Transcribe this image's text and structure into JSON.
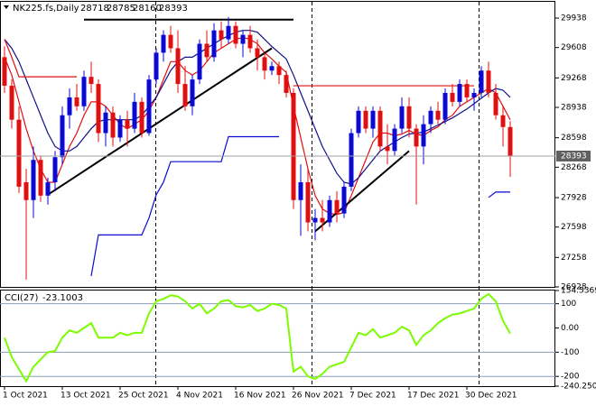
{
  "chart_data": [
    {
      "type": "candlestick",
      "title": "NK225.fs,Daily",
      "categories": [
        "1 Oct 2021",
        null,
        null,
        null,
        null,
        null,
        null,
        null,
        "13 Oct 2021",
        null,
        null,
        null,
        null,
        null,
        null,
        null,
        "25 Oct 2021",
        null,
        null,
        null,
        null,
        null,
        null,
        null,
        "4 Nov 2021",
        null,
        null,
        null,
        null,
        null,
        null,
        null,
        "16 Nov 2021",
        null,
        null,
        null,
        null,
        null,
        null,
        null,
        "26 Nov 2021",
        null,
        null,
        null,
        null,
        null,
        null,
        null,
        "7 Dec 2021",
        null,
        null,
        null,
        null,
        null,
        null,
        null,
        "17 Dec 2021",
        null,
        null,
        null,
        null,
        null,
        null,
        null,
        "30 Dec 2021",
        null,
        null,
        null,
        null,
        null,
        null
      ],
      "ohlc": [
        [
          29500,
          29620,
          29100,
          29180
        ],
        [
          29180,
          29250,
          28700,
          28800
        ],
        [
          28800,
          28950,
          27980,
          28050
        ],
        [
          28100,
          28250,
          27010,
          27900
        ],
        [
          27900,
          28500,
          27700,
          28350
        ],
        [
          28350,
          28400,
          27880,
          27950
        ],
        [
          27950,
          28150,
          27850,
          28100
        ],
        [
          28100,
          28450,
          28000,
          28380
        ],
        [
          28380,
          28950,
          28300,
          28850
        ],
        [
          28850,
          29150,
          28700,
          29050
        ],
        [
          29050,
          29200,
          28900,
          28950
        ],
        [
          28950,
          29350,
          28900,
          29280
        ],
        [
          29280,
          29450,
          29100,
          29200
        ],
        [
          29200,
          29250,
          28550,
          28650
        ],
        [
          28650,
          28950,
          28500,
          28880
        ],
        [
          28880,
          28950,
          28500,
          28600
        ],
        [
          28600,
          28850,
          28550,
          28800
        ],
        [
          28800,
          28900,
          28500,
          28700
        ],
        [
          28700,
          29100,
          28650,
          29000
        ],
        [
          29000,
          29050,
          28600,
          28650
        ],
        [
          28650,
          29300,
          28620,
          29250
        ],
        [
          29250,
          29600,
          29200,
          29550
        ],
        [
          29550,
          29800,
          29450,
          29750
        ],
        [
          29750,
          29850,
          29550,
          29600
        ],
        [
          29600,
          29800,
          29100,
          29200
        ],
        [
          29200,
          29400,
          28900,
          28950
        ],
        [
          28950,
          29300,
          28850,
          29250
        ],
        [
          29250,
          29700,
          29200,
          29650
        ],
        [
          29650,
          29800,
          29450,
          29500
        ],
        [
          29500,
          29880,
          29450,
          29800
        ],
        [
          29800,
          29900,
          29600,
          29700
        ],
        [
          29700,
          29950,
          29650,
          29850
        ],
        [
          29850,
          29900,
          29600,
          29650
        ],
        [
          29650,
          29800,
          29500,
          29750
        ],
        [
          29750,
          29850,
          29550,
          29600
        ],
        [
          29600,
          29700,
          29350,
          29500
        ],
        [
          29500,
          29550,
          29250,
          29350
        ],
        [
          29350,
          29450,
          29300,
          29400
        ],
        [
          29400,
          29450,
          29200,
          29300
        ],
        [
          29300,
          29350,
          29050,
          29100
        ],
        [
          29100,
          29150,
          27800,
          27900
        ],
        [
          27900,
          28300,
          27500,
          28100
        ],
        [
          28100,
          28250,
          27550,
          27650
        ],
        [
          27650,
          27800,
          27450,
          27700
        ],
        [
          27700,
          27900,
          27550,
          27650
        ],
        [
          27650,
          27950,
          27600,
          27900
        ],
        [
          27900,
          28000,
          27650,
          27750
        ],
        [
          27750,
          28100,
          27700,
          28050
        ],
        [
          28050,
          28700,
          28000,
          28650
        ],
        [
          28650,
          28950,
          28600,
          28900
        ],
        [
          28900,
          28950,
          28650,
          28700
        ],
        [
          28700,
          28950,
          28600,
          28900
        ],
        [
          28900,
          28950,
          28450,
          28500
        ],
        [
          28500,
          28750,
          28300,
          28450
        ],
        [
          28450,
          28750,
          28400,
          28700
        ],
        [
          28700,
          29050,
          28650,
          28950
        ],
        [
          28950,
          29050,
          28600,
          28700
        ],
        [
          28700,
          28750,
          27850,
          28500
        ],
        [
          28500,
          28850,
          28300,
          28750
        ],
        [
          28750,
          28950,
          28650,
          28900
        ],
        [
          28900,
          29000,
          28750,
          28800
        ],
        [
          28800,
          29150,
          28750,
          29100
        ],
        [
          29100,
          29200,
          28950,
          29000
        ],
        [
          29000,
          29250,
          28950,
          29200
        ],
        [
          29200,
          29250,
          29000,
          29050
        ],
        [
          29050,
          29150,
          28900,
          29100
        ],
        [
          29100,
          29400,
          29050,
          29350
        ],
        [
          29350,
          29450,
          29050,
          29100
        ],
        [
          29100,
          29200,
          28800,
          28850
        ],
        [
          28850,
          28950,
          28500,
          28718
        ],
        [
          28718,
          28785,
          28160,
          28393
        ]
      ],
      "up_color": "#0a0ad2",
      "down_color": "#e01010",
      "overlays": [
        {
          "color": "#e01010",
          "values": [
            29500,
            29300,
            29000,
            28700,
            28450,
            28250,
            28100,
            28100,
            28300,
            28500,
            28650,
            28850,
            29000,
            29000,
            28950,
            28850,
            28750,
            28700,
            28750,
            28800,
            28900,
            29050,
            29250,
            29450,
            29450,
            29350,
            29300,
            29350,
            29450,
            29550,
            29600,
            29650,
            29700,
            29720,
            29700,
            29650,
            29550,
            29480,
            29400,
            29330,
            28950,
            28600,
            28250,
            27950,
            27800,
            27750,
            27740,
            27760,
            27950,
            28150,
            28350,
            28550,
            28650,
            28650,
            28620,
            28640,
            28680,
            28640,
            28620,
            28680,
            28720,
            28800,
            28850,
            28950,
            29000,
            29050,
            29100,
            29150,
            29100,
            28950,
            28800
          ]
        },
        {
          "color": "#10108a",
          "values": [
            29700,
            29600,
            29450,
            29250,
            29050,
            28850,
            28650,
            28500,
            28450,
            28450,
            28500,
            28600,
            28700,
            28780,
            28800,
            28800,
            28800,
            28800,
            28800,
            28850,
            28950,
            29050,
            29200,
            29350,
            29450,
            29500,
            29500,
            29550,
            29600,
            29650,
            29700,
            29740,
            29780,
            29800,
            29800,
            29780,
            29700,
            29620,
            29550,
            29480,
            29300,
            29100,
            28900,
            28700,
            28500,
            28350,
            28200,
            28100,
            28080,
            28150,
            28250,
            28350,
            28450,
            28500,
            28550,
            28600,
            28640,
            28650,
            28660,
            28700,
            28740,
            28780,
            28820,
            28870,
            28920,
            28980,
            29040,
            29100,
            29150,
            29130,
            29050
          ]
        },
        {
          "color": "#e01010",
          "values": [
            29700,
            29500,
            29280,
            29280,
            29280,
            29280,
            29280,
            29280,
            29280,
            29280,
            29280,
            null,
            null,
            null,
            null,
            null,
            null,
            null,
            null,
            null,
            null,
            null,
            null,
            null,
            null,
            null,
            null,
            null,
            null,
            null,
            null,
            null,
            null,
            null,
            null,
            null,
            null,
            null,
            null,
            null,
            29180,
            29180,
            29180,
            29180,
            29180,
            29180,
            29180,
            29180,
            29180,
            29180,
            29180,
            29180,
            29180,
            29180,
            29180,
            29180,
            29180,
            29180,
            29180,
            29180,
            29180,
            29180,
            29180,
            29180,
            29180,
            29180,
            null,
            null,
            null,
            null,
            null
          ]
        },
        {
          "color": "#0a0ad2",
          "values": [
            null,
            null,
            null,
            null,
            null,
            null,
            null,
            null,
            null,
            null,
            null,
            null,
            27050,
            27510,
            27510,
            27510,
            27510,
            27510,
            27510,
            27510,
            27700,
            27960,
            28100,
            28330,
            28330,
            28330,
            28330,
            28330,
            28330,
            28330,
            28330,
            28610,
            28610,
            28610,
            28610,
            28610,
            28610,
            28610,
            28610,
            null,
            null,
            null,
            null,
            null,
            null,
            null,
            null,
            null,
            null,
            null,
            null,
            null,
            null,
            null,
            null,
            null,
            null,
            null,
            null,
            null,
            null,
            null,
            null,
            null,
            null,
            null,
            null,
            27930,
            27990,
            27990,
            27990
          ]
        }
      ],
      "trendlines": [
        {
          "x": [
            6,
            37
          ],
          "y": [
            27960,
            29600
          ]
        },
        {
          "x": [
            11,
            40
          ],
          "y": [
            29920,
            29920
          ]
        },
        {
          "x": [
            43,
            56
          ],
          "y": [
            27550,
            28450
          ]
        }
      ],
      "trendline_color": "#000000",
      "ylim": [
        26928,
        30120
      ],
      "yticks": [
        29938,
        29608,
        29268,
        28938,
        28598,
        28268,
        27928,
        27598,
        27258,
        26928
      ]
    },
    {
      "type": "line",
      "title": "CCI(27)",
      "color": "#7cfc00",
      "values": [
        -40,
        -120,
        -170,
        -220,
        -160,
        -130,
        -100,
        -95,
        -40,
        -10,
        -20,
        0,
        20,
        -40,
        -40,
        -40,
        -20,
        -30,
        -20,
        -20,
        60,
        110,
        120,
        135,
        130,
        110,
        80,
        100,
        60,
        80,
        110,
        115,
        90,
        85,
        95,
        70,
        80,
        100,
        95,
        80,
        -180,
        -160,
        -200,
        -210,
        -190,
        -160,
        -150,
        -140,
        -80,
        -20,
        -30,
        -5,
        -40,
        -30,
        -20,
        5,
        -10,
        -70,
        -30,
        -10,
        20,
        40,
        55,
        60,
        70,
        80,
        120,
        140,
        110,
        30,
        -23.1003
      ],
      "levels": [
        100,
        -100,
        -200
      ],
      "ylim": [
        -240.25,
        154.5369
      ],
      "yticks": [
        154.5369,
        100,
        {
          "value": 0,
          "label": "0.00"
        },
        -100,
        -200,
        {
          "value": -240.25,
          "label": "-240.250"
        }
      ]
    }
  ]
}
